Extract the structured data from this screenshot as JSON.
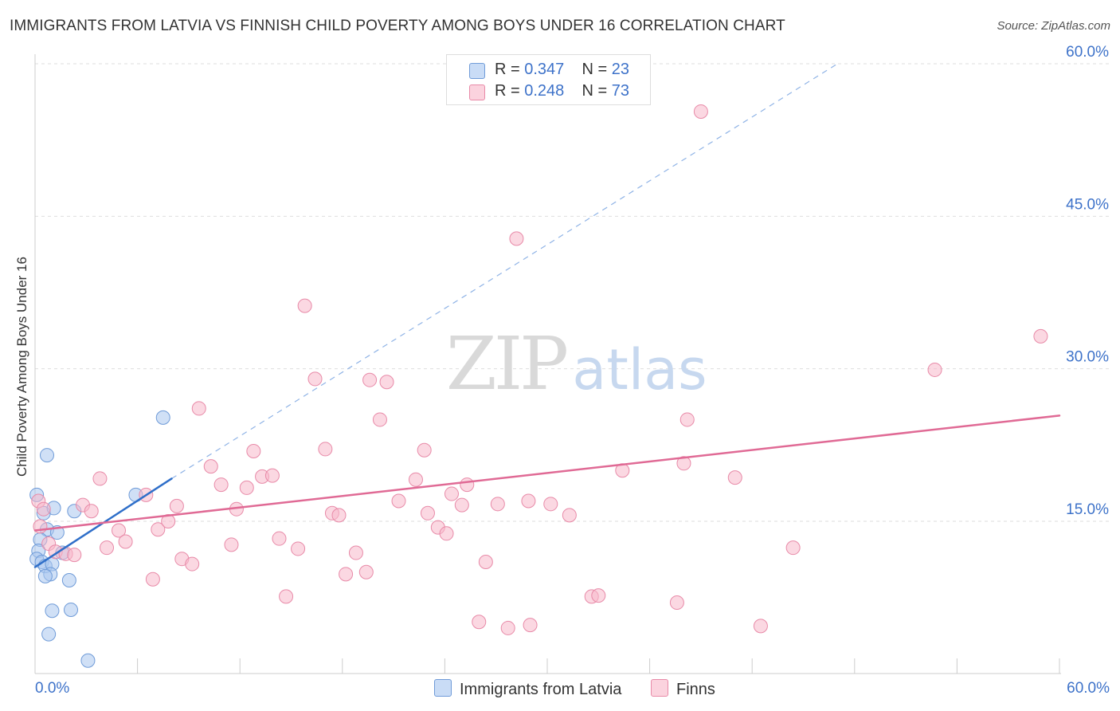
{
  "title": "IMMIGRANTS FROM LATVIA VS FINNISH CHILD POVERTY AMONG BOYS UNDER 16 CORRELATION CHART",
  "source": "Source: ZipAtlas.com",
  "watermark": {
    "zip": "ZIP",
    "atlas": "atlas"
  },
  "legend": {
    "rows": [
      {
        "r_label": "R = ",
        "r_value": "0.347",
        "n_label": "N = ",
        "n_value": "23",
        "color": "#a9c6ef",
        "stroke": "#6f9bd8"
      },
      {
        "r_label": "R = ",
        "r_value": "0.248",
        "n_label": "N = ",
        "n_value": "73",
        "color": "#f7b8cb",
        "stroke": "#e88aa8"
      }
    ]
  },
  "bottom_legend": [
    {
      "label": "Immigrants from Latvia",
      "color": "#a9c6ef"
    },
    {
      "label": "Finns",
      "color": "#f7b8cb"
    }
  ],
  "chart_data": {
    "type": "scatter",
    "title": "IMMIGRANTS FROM LATVIA VS FINNISH CHILD POVERTY AMONG BOYS UNDER 16 CORRELATION CHART",
    "xlabel": "",
    "ylabel": "Child Poverty Among Boys Under 16",
    "xlim": [
      0,
      60
    ],
    "ylim": [
      0,
      60
    ],
    "x_tick_labels": [
      "0.0%",
      "60.0%"
    ],
    "y_tick_labels": [
      "15.0%",
      "30.0%",
      "45.0%",
      "60.0%"
    ],
    "y_ticks": [
      15,
      30,
      45,
      60
    ],
    "grid": true,
    "legend_position": "top-center",
    "series": [
      {
        "name": "Immigrants from Latvia",
        "color": "#6f9bd8",
        "fill": "#a9c6ef",
        "trend": {
          "x0": 0.0,
          "y0": 10.5,
          "x1": 8.0,
          "y1": 19.2,
          "color": "#2f6fc9",
          "dash_to_x": 47.0,
          "dash_to_y": 60.0
        },
        "points": [
          [
            0.1,
            17.6
          ],
          [
            0.5,
            15.8
          ],
          [
            1.1,
            16.3
          ],
          [
            2.3,
            16.0
          ],
          [
            0.7,
            14.2
          ],
          [
            1.3,
            13.9
          ],
          [
            0.3,
            13.2
          ],
          [
            0.2,
            12.1
          ],
          [
            0.1,
            11.3
          ],
          [
            1.6,
            11.9
          ],
          [
            0.4,
            11.0
          ],
          [
            0.6,
            10.6
          ],
          [
            1.0,
            10.8
          ],
          [
            0.9,
            9.8
          ],
          [
            0.6,
            9.6
          ],
          [
            2.0,
            9.2
          ],
          [
            0.7,
            21.5
          ],
          [
            1.0,
            6.2
          ],
          [
            2.1,
            6.3
          ],
          [
            0.8,
            3.9
          ],
          [
            3.1,
            1.3
          ],
          [
            7.5,
            25.2
          ],
          [
            5.9,
            17.6
          ]
        ]
      },
      {
        "name": "Finns",
        "color": "#e88aa8",
        "fill": "#f7b8cb",
        "trend": {
          "x0": 0.0,
          "y0": 14.1,
          "x1": 60.0,
          "y1": 25.4,
          "color": "#e06a95"
        },
        "points": [
          [
            0.2,
            17.0
          ],
          [
            0.5,
            16.2
          ],
          [
            0.3,
            14.5
          ],
          [
            0.8,
            12.8
          ],
          [
            1.2,
            12.0
          ],
          [
            1.8,
            11.8
          ],
          [
            2.3,
            11.7
          ],
          [
            2.8,
            16.6
          ],
          [
            3.3,
            16.0
          ],
          [
            3.8,
            19.2
          ],
          [
            4.2,
            12.4
          ],
          [
            4.9,
            14.1
          ],
          [
            5.3,
            13.0
          ],
          [
            6.5,
            17.6
          ],
          [
            6.9,
            9.3
          ],
          [
            7.2,
            14.2
          ],
          [
            7.8,
            15.0
          ],
          [
            8.3,
            16.5
          ],
          [
            8.6,
            11.3
          ],
          [
            9.2,
            10.8
          ],
          [
            9.6,
            26.1
          ],
          [
            10.3,
            20.4
          ],
          [
            10.9,
            18.6
          ],
          [
            11.5,
            12.7
          ],
          [
            11.8,
            16.2
          ],
          [
            12.4,
            18.3
          ],
          [
            12.8,
            21.9
          ],
          [
            13.3,
            19.4
          ],
          [
            13.9,
            19.5
          ],
          [
            14.3,
            13.3
          ],
          [
            14.7,
            7.6
          ],
          [
            15.4,
            12.3
          ],
          [
            15.8,
            36.2
          ],
          [
            16.4,
            29.0
          ],
          [
            17.0,
            22.1
          ],
          [
            17.4,
            15.8
          ],
          [
            17.8,
            15.6
          ],
          [
            18.2,
            9.8
          ],
          [
            18.8,
            11.9
          ],
          [
            19.4,
            10.0
          ],
          [
            19.6,
            28.9
          ],
          [
            20.2,
            25.0
          ],
          [
            20.6,
            28.7
          ],
          [
            21.3,
            17.0
          ],
          [
            22.3,
            19.1
          ],
          [
            22.8,
            22.0
          ],
          [
            23.0,
            15.8
          ],
          [
            23.6,
            14.4
          ],
          [
            24.1,
            13.8
          ],
          [
            24.4,
            17.7
          ],
          [
            25.0,
            16.6
          ],
          [
            25.3,
            18.6
          ],
          [
            26.0,
            5.1
          ],
          [
            26.4,
            11.0
          ],
          [
            27.1,
            16.7
          ],
          [
            27.7,
            4.5
          ],
          [
            28.2,
            42.8
          ],
          [
            28.9,
            17.0
          ],
          [
            29.0,
            4.8
          ],
          [
            30.2,
            16.7
          ],
          [
            31.3,
            15.6
          ],
          [
            32.6,
            7.6
          ],
          [
            33.0,
            7.7
          ],
          [
            34.4,
            20.0
          ],
          [
            37.6,
            7.0
          ],
          [
            38.0,
            20.7
          ],
          [
            38.2,
            25.0
          ],
          [
            39.0,
            55.3
          ],
          [
            41.0,
            19.3
          ],
          [
            42.5,
            4.7
          ],
          [
            44.4,
            12.4
          ],
          [
            52.7,
            29.9
          ],
          [
            58.9,
            33.2
          ]
        ]
      }
    ]
  }
}
